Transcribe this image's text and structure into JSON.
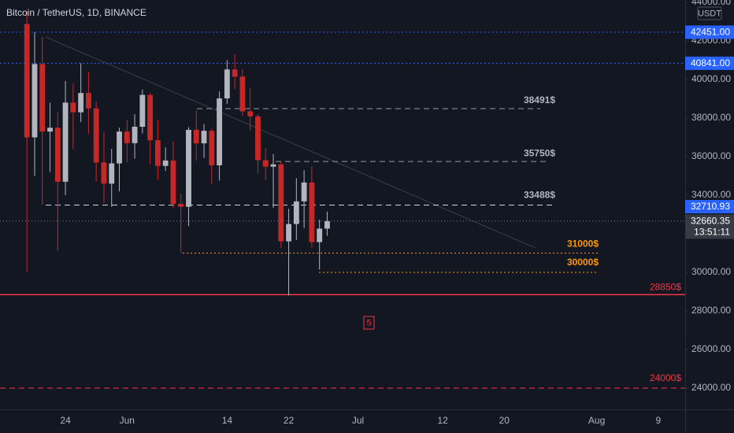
{
  "chart_data": {
    "type": "candlestick",
    "title": "Bitcoin / TetherUS, 1D, BINANCE",
    "currency": "USDT",
    "categories": [
      null,
      null,
      null,
      null,
      null,
      null,
      null,
      null,
      "24",
      null,
      null,
      null,
      null,
      null,
      null,
      null,
      "Jun",
      null,
      null,
      null,
      null,
      null,
      null,
      null,
      null,
      null,
      null,
      null,
      null,
      "14",
      null,
      null,
      null,
      null,
      null,
      null,
      null,
      "22",
      null,
      null,
      null,
      null,
      null,
      null,
      null,
      null,
      "Jul",
      null,
      null,
      null,
      null,
      null,
      null,
      null,
      null,
      null,
      null,
      "12",
      null,
      null,
      null,
      null,
      null,
      null,
      null,
      "20",
      null,
      null,
      null,
      null,
      null,
      null,
      null,
      null,
      null,
      null,
      null,
      "Aug",
      null,
      null,
      null,
      null,
      null,
      null,
      null,
      "9",
      null,
      null,
      null
    ],
    "open": [
      null,
      null,
      null,
      42876,
      37000,
      40800,
      37300,
      37500,
      34700,
      38800,
      38300,
      39300,
      38500,
      35700,
      34600,
      35650,
      37300,
      36700,
      37550,
      39200,
      36850,
      35520,
      35800,
      33550,
      33400,
      37390,
      36690,
      37340,
      35550,
      39020,
      40520,
      40150,
      38350,
      38090,
      35820,
      35480,
      35600,
      31610,
      32510,
      33680,
      34660,
      31570,
      32270,
      null,
      null,
      null,
      null,
      null,
      null,
      null,
      null,
      null,
      null,
      null,
      null,
      null,
      null,
      null,
      null,
      null,
      null,
      null,
      null,
      null,
      null,
      null,
      null,
      null,
      null,
      null,
      null,
      null,
      null,
      null,
      null,
      null,
      null,
      null,
      null,
      null,
      null,
      null,
      null,
      null,
      null,
      null,
      null,
      null,
      null
    ],
    "high": [
      null,
      null,
      null,
      43546,
      42451,
      42200,
      38800,
      38300,
      39920,
      39800,
      40841,
      40400,
      38850,
      37300,
      36400,
      37500,
      37900,
      38200,
      39480,
      39300,
      37900,
      36480,
      36800,
      34070,
      37530,
      38400,
      37690,
      37450,
      39380,
      41000,
      41330,
      40530,
      39560,
      38200,
      36450,
      36140,
      35750,
      33300,
      34880,
      35300,
      35500,
      32730,
      33150,
      null,
      null,
      null,
      null,
      null,
      null,
      null,
      null,
      null,
      null,
      null,
      null,
      null,
      null,
      null,
      null,
      null,
      null,
      null,
      null,
      null,
      null,
      null,
      null,
      null,
      null,
      null,
      null,
      null,
      null,
      null,
      null,
      null,
      null,
      null,
      null,
      null,
      null,
      null,
      null,
      null,
      null,
      null,
      null,
      null,
      null
    ],
    "low": [
      null,
      null,
      null,
      30000,
      35000,
      33500,
      35200,
      31111,
      34000,
      36400,
      37800,
      37170,
      34700,
      33600,
      33400,
      34200,
      35700,
      35900,
      37200,
      35600,
      34800,
      35260,
      33330,
      31000,
      32400,
      35800,
      35930,
      34600,
      34760,
      38730,
      39510,
      38120,
      37370,
      35130,
      34800,
      33340,
      31250,
      28800,
      31680,
      32300,
      31280,
      30150,
      31900,
      null,
      null,
      null,
      null,
      null,
      null,
      null,
      null,
      null,
      null,
      null,
      null,
      null,
      null,
      null,
      null,
      null,
      null,
      null,
      null,
      null,
      null,
      null,
      null,
      null,
      null,
      null,
      null,
      null,
      null,
      null,
      null,
      null,
      null,
      null,
      null,
      null,
      null,
      null,
      null,
      null,
      null,
      null,
      null,
      null,
      null
    ],
    "close": [
      null,
      null,
      null,
      37000,
      40800,
      37300,
      37500,
      34700,
      38800,
      38300,
      39300,
      38500,
      35700,
      34600,
      35650,
      37300,
      36700,
      37550,
      39200,
      36850,
      35520,
      35800,
      33550,
      33400,
      37390,
      36690,
      37340,
      35550,
      39020,
      40520,
      40150,
      38350,
      38090,
      35820,
      35480,
      35600,
      31610,
      32510,
      33680,
      34660,
      31570,
      32270,
      32660.35,
      null,
      null,
      null,
      null,
      null,
      null,
      null,
      null,
      null,
      null,
      null,
      null,
      null,
      null,
      null,
      null,
      null,
      null,
      null,
      null,
      null,
      null,
      null,
      null,
      null,
      null,
      null,
      null,
      null,
      null,
      null,
      null,
      null,
      null,
      null,
      null,
      null,
      null,
      null,
      null,
      null,
      null,
      null,
      null,
      null,
      null
    ],
    "up_color": "#b2b5be",
    "down_color": "#c62828",
    "ylim": [
      22900,
      44120
    ],
    "yticks": [
      {
        "value": 24000,
        "label": "24000.00"
      },
      {
        "value": 26000,
        "label": "26000.00"
      },
      {
        "value": 28000,
        "label": "28000.00"
      },
      {
        "value": 30000,
        "label": "30000.00"
      },
      {
        "value": 32000,
        "label": "32000.00"
      },
      {
        "value": 34000,
        "label": "34000.00"
      },
      {
        "value": 36000,
        "label": "36000.00"
      },
      {
        "value": 38000,
        "label": "38000.00"
      },
      {
        "value": 40000,
        "label": "40000.00"
      },
      {
        "value": 42000,
        "label": "42000.00"
      },
      {
        "value": 44000,
        "label": "44000.00"
      }
    ],
    "grid": false,
    "levels": [
      {
        "value": 42451,
        "label": "42451.00",
        "color": "#2962ff",
        "style": "dotted"
      },
      {
        "value": 40841,
        "label": "40841.00",
        "color": "#2962ff",
        "style": "dotted"
      },
      {
        "value": 38491,
        "label": "38491$",
        "color": "#9598a1",
        "style": "dashed"
      },
      {
        "value": 35750,
        "label": "35750$",
        "color": "#9598a1",
        "style": "dashed"
      },
      {
        "value": 33488,
        "label": "33488$",
        "color": "#d1d4dc",
        "style": "dashed"
      },
      {
        "value": 31000,
        "label": "31000$",
        "color": "#ff9800",
        "style": "dotted"
      },
      {
        "value": 30000,
        "label": "30000$",
        "color": "#ff9800",
        "style": "dotted"
      },
      {
        "value": 28850,
        "label": "28850$",
        "color": "#f23645",
        "style": "solid"
      },
      {
        "value": 24000,
        "label": "24000$",
        "color": "#f23645",
        "style": "dashed"
      }
    ],
    "current_price": {
      "value": 32660.35,
      "label": "32660.35"
    },
    "countdown": "13:51:11",
    "marker_label": "32710.93",
    "annotation": "5"
  }
}
